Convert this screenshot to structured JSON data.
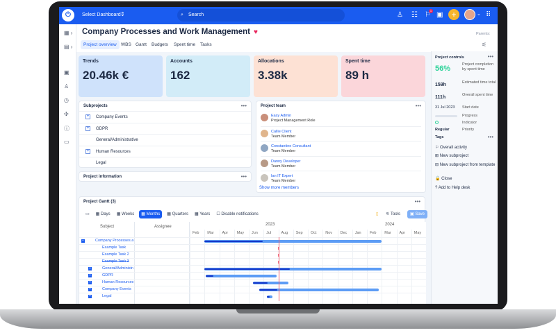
{
  "topbar": {
    "dashboard_select": "Select Dashboard",
    "search_placeholder": "Search",
    "notification_count": "1"
  },
  "header": {
    "title": "Company Processes and Work Management",
    "parents_label": "Parents:",
    "tabs": [
      "Project overview",
      "WBS",
      "Gantt",
      "Budgets",
      "Spent time",
      "Tasks"
    ],
    "active_tab": "Project overview"
  },
  "kpis": [
    {
      "label": "Trends",
      "value": "20.46k €",
      "color": "#cfe2fb"
    },
    {
      "label": "Accounts",
      "value": "162",
      "color": "#d2ecf8"
    },
    {
      "label": "Allocations",
      "value": "3.38k",
      "color": "#fde1d4"
    },
    {
      "label": "Spent time",
      "value": "89 h",
      "color": "#fbd6da"
    }
  ],
  "subprojects": {
    "title": "Subprojects",
    "items": [
      {
        "name": "Company Events",
        "expandable": true
      },
      {
        "name": "GDPR",
        "expandable": true
      },
      {
        "name": "General/Administrative",
        "expandable": false
      },
      {
        "name": "Human Resources",
        "expandable": true
      },
      {
        "name": "Legal",
        "expandable": false
      }
    ]
  },
  "project_information": {
    "title": "Project information"
  },
  "project_team": {
    "title": "Project team",
    "members": [
      {
        "name": "Easy Admin",
        "role": "Project Management Role"
      },
      {
        "name": "Callie Client",
        "role": "Team Member"
      },
      {
        "name": "Constantine Consultant",
        "role": "Team Member"
      },
      {
        "name": "Danny Developer",
        "role": "Team Member"
      },
      {
        "name": "Ian IT Expert",
        "role": "Team Member"
      }
    ],
    "show_more": "Show more members"
  },
  "project_controls": {
    "title": "Project controls",
    "stats": [
      {
        "value": "56%",
        "label": "Project completion by spent time"
      },
      {
        "value": "159h",
        "label": "Estimated time total"
      },
      {
        "value": "111h",
        "label": "Overall spent time"
      },
      {
        "value": "31 Jul 2023",
        "label": "Start date"
      },
      {
        "value": "",
        "label": "Progress",
        "progress": 0
      },
      {
        "value": "",
        "label": "Indicator"
      },
      {
        "value": "Regular",
        "label": "Priority"
      }
    ],
    "tags_label": "Tags",
    "actions": [
      "Overall activity",
      "New subproject",
      "New subproject from template",
      "Close",
      "Add to Help desk"
    ]
  },
  "gantt": {
    "title": "Project Gantt (3)",
    "zoom_buttons": [
      "Days",
      "Weeks",
      "Months",
      "Quarters",
      "Years"
    ],
    "active_zoom": "Months",
    "disable_notifications": "Disable notifications",
    "tools": "Tools",
    "save": "Save",
    "col_subject": "Subject",
    "col_assignee": "Assignee",
    "years": [
      "2023",
      "2024"
    ],
    "months": [
      "Feb",
      "Mar",
      "Apr",
      "May",
      "Jun",
      "Jul",
      "Aug",
      "Sep",
      "Oct",
      "Nov",
      "Dec",
      "Jan",
      "Feb",
      "Mar",
      "Apr",
      "May"
    ],
    "today": "2023-08-01",
    "rows": [
      {
        "subject": "Company Processes and Work Management",
        "level": 0,
        "start": 1,
        "end": 13,
        "progress": 0.33
      },
      {
        "subject": "Example Task",
        "level": 1,
        "task": true
      },
      {
        "subject": "Example Task 2",
        "level": 1,
        "task": true
      },
      {
        "subject": "Example Task 3",
        "level": 1,
        "task": true,
        "closed": true
      },
      {
        "subject": "General/Administrative",
        "level": 1,
        "start": 1,
        "end": 13,
        "progress": 0.48
      },
      {
        "subject": "GDPR",
        "level": 1,
        "start": 1.1,
        "end": 5.9,
        "progress": 0.1
      },
      {
        "subject": "Human Resources",
        "level": 1,
        "start": 4.3,
        "end": 6.7,
        "progress": 0.4
      },
      {
        "subject": "Company Events",
        "level": 1,
        "start": 4.7,
        "end": 12.8,
        "progress": 0.15
      },
      {
        "subject": "Legal",
        "level": 1,
        "start": 5.2,
        "end": 5.6,
        "progress": 0.5
      }
    ]
  }
}
